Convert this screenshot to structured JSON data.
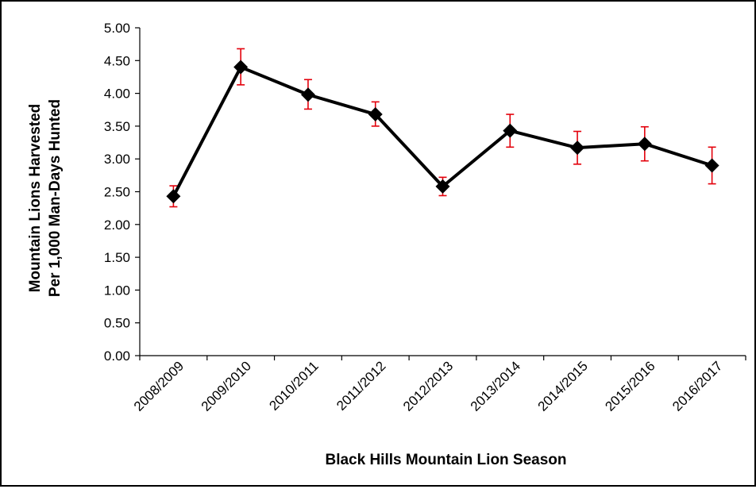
{
  "chart_data": {
    "type": "line",
    "title": "",
    "xlabel": "Black Hills  Mountain Lion Season",
    "ylabel_lines": [
      "Mountain Lions Harvested",
      "Per 1,000 Man-Days Hunted"
    ],
    "categories": [
      "2008/2009",
      "2009/2010",
      "2010/2011",
      "2011/2012",
      "2012/2013",
      "2013/2014",
      "2014/2015",
      "2015/2016",
      "2016/2017"
    ],
    "series": [
      {
        "values": [
          2.43,
          4.4,
          3.98,
          3.68,
          2.58,
          3.43,
          3.17,
          3.23,
          2.9
        ],
        "error_low": [
          2.27,
          4.13,
          3.76,
          3.5,
          2.44,
          3.18,
          2.92,
          2.97,
          2.62
        ],
        "error_high": [
          2.59,
          4.68,
          4.21,
          3.87,
          2.72,
          3.68,
          3.42,
          3.49,
          3.18
        ],
        "color": "#000000",
        "marker": "diamond",
        "error_bar_color": "#e3000b"
      }
    ],
    "ylim": [
      0,
      5
    ],
    "yticks": [
      "0.00",
      "0.50",
      "1.00",
      "1.50",
      "2.00",
      "2.50",
      "3.00",
      "3.50",
      "4.00",
      "4.50",
      "5.00"
    ],
    "grid": false,
    "legend": "none"
  }
}
